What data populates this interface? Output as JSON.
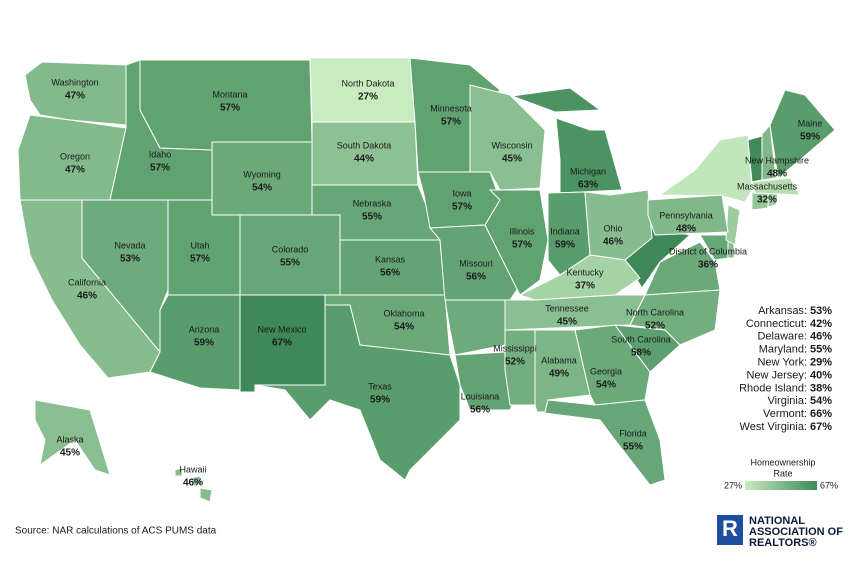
{
  "legend": {
    "title": [
      "Homeownership",
      "Rate"
    ],
    "min": 27,
    "max": 67,
    "min_label": "27%",
    "max_label": "67%"
  },
  "states": [
    {
      "name": "Washington",
      "value": 47,
      "label": "47%"
    },
    {
      "name": "Oregon",
      "value": 47,
      "label": "47%"
    },
    {
      "name": "California",
      "value": 46,
      "label": "46%"
    },
    {
      "name": "Nevada",
      "value": 53,
      "label": "53%"
    },
    {
      "name": "Idaho",
      "value": 57,
      "label": "57%"
    },
    {
      "name": "Montana",
      "value": 57,
      "label": "57%"
    },
    {
      "name": "Wyoming",
      "value": 54,
      "label": "54%"
    },
    {
      "name": "Utah",
      "value": 57,
      "label": "57%"
    },
    {
      "name": "Arizona",
      "value": 59,
      "label": "59%"
    },
    {
      "name": "Colorado",
      "value": 55,
      "label": "55%"
    },
    {
      "name": "New Mexico",
      "value": 67,
      "label": "67%"
    },
    {
      "name": "North Dakota",
      "value": 27,
      "label": "27%"
    },
    {
      "name": "South Dakota",
      "value": 44,
      "label": "44%"
    },
    {
      "name": "Nebraska",
      "value": 55,
      "label": "55%"
    },
    {
      "name": "Kansas",
      "value": 56,
      "label": "56%"
    },
    {
      "name": "Oklahoma",
      "value": 54,
      "label": "54%"
    },
    {
      "name": "Texas",
      "value": 59,
      "label": "59%"
    },
    {
      "name": "Minnesota",
      "value": 57,
      "label": "57%"
    },
    {
      "name": "Iowa",
      "value": 57,
      "label": "57%"
    },
    {
      "name": "Missouri",
      "value": 56,
      "label": "56%"
    },
    {
      "name": "Louisiana",
      "value": 56,
      "label": "56%"
    },
    {
      "name": "Wisconsin",
      "value": 45,
      "label": "45%"
    },
    {
      "name": "Illinois",
      "value": 57,
      "label": "57%"
    },
    {
      "name": "Michigan",
      "value": 63,
      "label": "63%"
    },
    {
      "name": "Indiana",
      "value": 59,
      "label": "59%"
    },
    {
      "name": "Ohio",
      "value": 46,
      "label": "46%"
    },
    {
      "name": "Kentucky",
      "value": 37,
      "label": "37%"
    },
    {
      "name": "Tennessee",
      "value": 45,
      "label": "45%"
    },
    {
      "name": "Mississippi",
      "value": 52,
      "label": "52%"
    },
    {
      "name": "Alabama",
      "value": 49,
      "label": "49%"
    },
    {
      "name": "Georgia",
      "value": 54,
      "label": "54%"
    },
    {
      "name": "Florida",
      "value": 55,
      "label": "55%"
    },
    {
      "name": "South Carolina",
      "value": 58,
      "label": "58%"
    },
    {
      "name": "North Carolina",
      "value": 52,
      "label": "52%"
    },
    {
      "name": "Pennsylvania",
      "value": 48,
      "label": "48%"
    },
    {
      "name": "New Hampshire",
      "value": 48,
      "label": "48%"
    },
    {
      "name": "Maine",
      "value": 59,
      "label": "59%"
    },
    {
      "name": "Massachusetts",
      "value": 32,
      "label": "32%"
    },
    {
      "name": "District of Columbia",
      "value": 36,
      "label": "36%"
    },
    {
      "name": "Alaska",
      "value": 45,
      "label": "45%"
    },
    {
      "name": "Hawaii",
      "value": 46,
      "label": "46%"
    }
  ],
  "side_list": [
    {
      "name": "Arkansas:",
      "value": 53,
      "label": "53%"
    },
    {
      "name": "Connecticut:",
      "value": 42,
      "label": "42%"
    },
    {
      "name": "Delaware:",
      "value": 46,
      "label": "46%"
    },
    {
      "name": "Maryland:",
      "value": 55,
      "label": "55%"
    },
    {
      "name": "New York:",
      "value": 29,
      "label": "29%"
    },
    {
      "name": "New Jersey:",
      "value": 40,
      "label": "40%"
    },
    {
      "name": "Rhode Island:",
      "value": 38,
      "label": "38%"
    },
    {
      "name": "Virginia:",
      "value": 54,
      "label": "54%"
    },
    {
      "name": "Vermont:",
      "value": 66,
      "label": "66%"
    },
    {
      "name": "West Virginia:",
      "value": 67,
      "label": "67%"
    }
  ],
  "source": "Source: NAR calculations of ACS PUMS data",
  "logo": [
    "NATIONAL",
    "ASSOCIATION OF",
    "REALTORS®"
  ]
}
